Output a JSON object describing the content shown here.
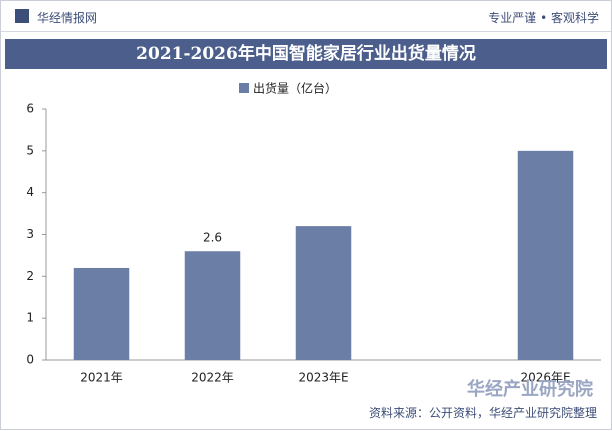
{
  "header": {
    "brand": "华经情报网",
    "motto": "专业严谨 • 客观科学"
  },
  "chart_data": {
    "type": "bar",
    "title": "2021-2026年中国智能家居行业出货量情况",
    "categories": [
      "2021年",
      "2022年",
      "2023年E",
      null,
      "2026年E"
    ],
    "series": [
      {
        "name": "出货量（亿台）",
        "color": "#6b7ea6",
        "values": [
          2.2,
          2.6,
          3.2,
          null,
          5.0
        ],
        "value_labels": [
          null,
          "2.6",
          null,
          null,
          null
        ]
      }
    ],
    "ylim": [
      0,
      6
    ],
    "yticks": [
      0,
      1,
      2,
      3,
      4,
      5,
      6
    ],
    "grid": false
  },
  "footer": {
    "source": "资料来源：公开资料，华经产业研究院整理",
    "watermark": "华经产业研究院"
  }
}
